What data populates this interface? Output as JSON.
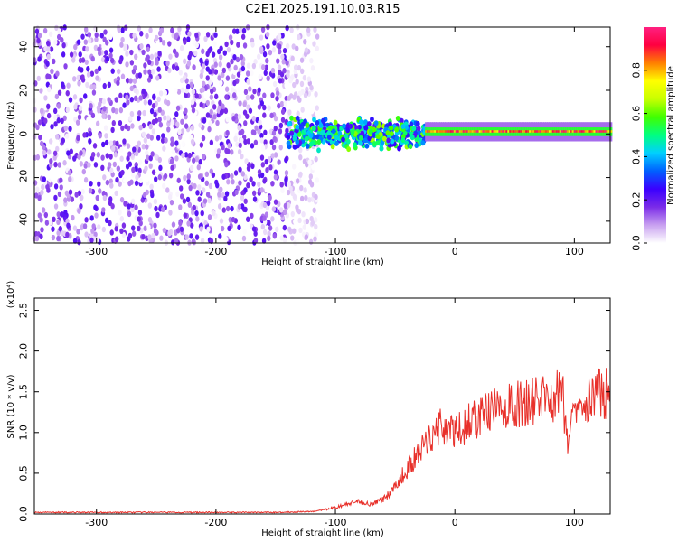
{
  "chart_data": [
    {
      "type": "heatmap",
      "title": "C2E1.2025.191.10.03.R15",
      "xlabel": "Height of straight line (km)",
      "ylabel": "Frequency (Hz)",
      "xlim": [
        -352,
        130
      ],
      "ylim": [
        -50,
        49
      ],
      "x_ticks": [
        -300,
        -200,
        -100,
        0,
        100
      ],
      "x_tick_labels": [
        "-300",
        "-200",
        "-100",
        "0",
        "100"
      ],
      "y_ticks": [
        -40,
        -20,
        0,
        20,
        40
      ],
      "y_tick_labels": [
        "-40",
        "-20",
        "0",
        "20",
        "40"
      ],
      "colorbar": {
        "label": "Normalized spectral amplitude",
        "range": [
          0.0,
          1.0
        ],
        "ticks": [
          0.0,
          0.2,
          0.4,
          0.6,
          0.8
        ],
        "tick_labels": [
          "0.0",
          "0.2",
          "0.4",
          "0.6",
          "0.8"
        ],
        "colormap": [
          "#ffffff",
          "#c8a0f0",
          "#7a2be8",
          "#3a00ff",
          "#0060ff",
          "#00d0ff",
          "#00ff80",
          "#40ff00",
          "#c8ff00",
          "#ffff00",
          "#ff8000",
          "#ff0040",
          "#ff2080"
        ]
      },
      "regions": [
        {
          "x_range": [
            -352,
            -140
          ],
          "freq_range": [
            -50,
            49
          ],
          "description_level": 0.15
        },
        {
          "x_range": [
            -140,
            -25
          ],
          "freq_range": [
            -12,
            12
          ],
          "description_level": 0.45
        },
        {
          "x_range": [
            -25,
            130
          ],
          "freq_center": 1,
          "freq_halfwidth": 2,
          "description_level": 0.9
        }
      ]
    },
    {
      "type": "line",
      "xlabel": "Height of straight line (km)",
      "ylabel": "SNR (10 * v/v)",
      "y_multiplier": "(x10⁴)",
      "xlim": [
        -352,
        130
      ],
      "ylim": [
        0.0,
        2.65
      ],
      "x_ticks": [
        -300,
        -200,
        -100,
        0,
        100
      ],
      "x_tick_labels": [
        "-300",
        "-200",
        "-100",
        "0",
        "100"
      ],
      "y_ticks": [
        0.0,
        0.5,
        1.0,
        1.5,
        2.0,
        2.5
      ],
      "y_tick_labels": [
        "0.0",
        "0.5",
        "1.0",
        "1.5",
        "2.0",
        "2.5"
      ],
      "series": [
        {
          "color": "#e8302a",
          "x": [
            -352,
            -300,
            -250,
            -200,
            -150,
            -120,
            -110,
            -100,
            -90,
            -80,
            -70,
            -60,
            -55,
            -50,
            -45,
            -40,
            -35,
            -30,
            -25,
            -20,
            -15,
            -10,
            -5,
            0,
            10,
            20,
            30,
            40,
            50,
            60,
            70,
            80,
            85,
            90,
            95,
            100,
            105,
            110,
            115,
            120,
            125,
            130
          ],
          "y": [
            0.02,
            0.02,
            0.02,
            0.02,
            0.02,
            0.03,
            0.05,
            0.08,
            0.12,
            0.15,
            0.12,
            0.18,
            0.25,
            0.35,
            0.45,
            0.55,
            0.65,
            0.75,
            0.85,
            0.95,
            1.05,
            1.1,
            1.0,
            1.0,
            1.1,
            1.2,
            1.25,
            1.3,
            1.33,
            1.37,
            1.4,
            1.42,
            1.45,
            1.5,
            0.8,
            1.45,
            1.4,
            1.45,
            1.42,
            1.47,
            1.48,
            1.5
          ]
        }
      ]
    }
  ]
}
